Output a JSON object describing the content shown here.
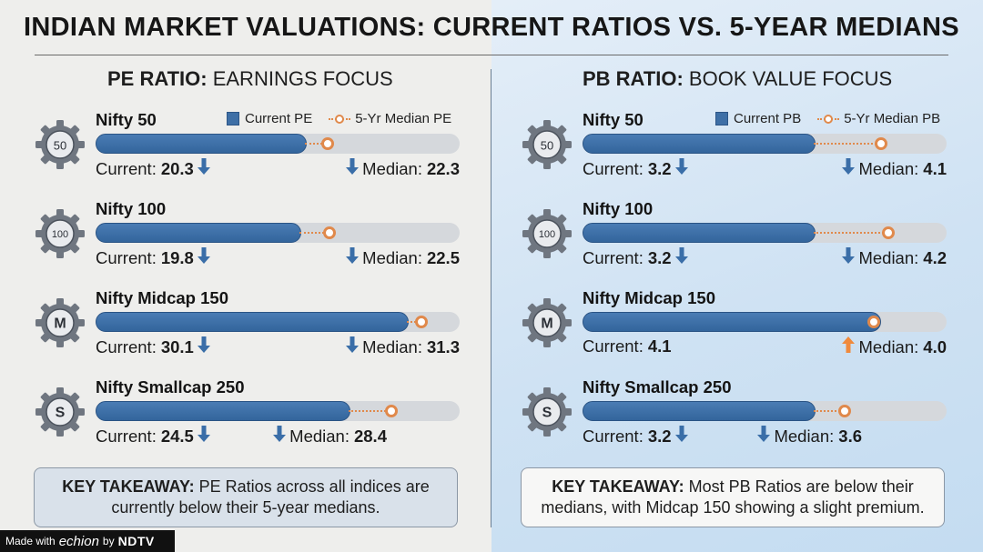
{
  "title": "INDIAN MARKET VALUATIONS: CURRENT RATIOS VS. 5-YEAR MEDIANS",
  "colors": {
    "current_bar": "#3e6fa6",
    "median_marker": "#e0894b",
    "arrow_down": "#3a6ea8",
    "arrow_up": "#f08a3c"
  },
  "pe": {
    "heading_bold": "PE RATIO:",
    "heading_rest": " EARNINGS FOCUS",
    "legend_current": "Current PE",
    "legend_median": "5-Yr Median PE",
    "takeaway_bold": "KEY TAKEAWAY:",
    "takeaway_line1": " PE Ratios across all indices are",
    "takeaway_line2": "currently below their 5-year medians."
  },
  "pb": {
    "heading_bold": "PB RATIO:",
    "heading_rest": " BOOK VALUE FOCUS",
    "legend_current": "Current PB",
    "legend_median": "5-Yr Median PB",
    "takeaway_bold": "KEY TAKEAWAY:",
    "takeaway_line1": " Most PB Ratios are below their",
    "takeaway_line2": "medians, with Midcap 150 showing a slight premium."
  },
  "labels": {
    "current": "Current:",
    "median": "Median:"
  },
  "chart_data": [
    {
      "type": "bar",
      "title": "PE RATIO: EARNINGS FOCUS",
      "categories": [
        "Nifty 50",
        "Nifty 100",
        "Nifty Midcap 150",
        "Nifty Smallcap 250"
      ],
      "badges": [
        "50",
        "100",
        "M",
        "S"
      ],
      "series": [
        {
          "name": "Current PE",
          "values": [
            20.3,
            19.8,
            30.1,
            24.5
          ]
        },
        {
          "name": "5-Yr Median PE",
          "values": [
            22.3,
            22.5,
            31.3,
            28.4
          ]
        }
      ],
      "median_arrows": [
        "down",
        "down",
        "down",
        "down"
      ],
      "xlim": [
        0,
        35
      ]
    },
    {
      "type": "bar",
      "title": "PB RATIO: BOOK VALUE FOCUS",
      "categories": [
        "Nifty 50",
        "Nifty 100",
        "Nifty Midcap 150",
        "Nifty Smallcap 250"
      ],
      "badges": [
        "50",
        "100",
        "M",
        "S"
      ],
      "series": [
        {
          "name": "Current PB",
          "values": [
            3.2,
            3.2,
            4.1,
            3.2
          ]
        },
        {
          "name": "5-Yr Median PB",
          "values": [
            4.1,
            4.2,
            4.0,
            3.6
          ]
        }
      ],
      "median_arrows": [
        "down",
        "down",
        "up",
        "down"
      ],
      "xlim": [
        0,
        5
      ]
    }
  ],
  "footer": {
    "made_with": "Made with",
    "echion": "echion",
    "by": "by",
    "ndtv": "NDTV"
  }
}
